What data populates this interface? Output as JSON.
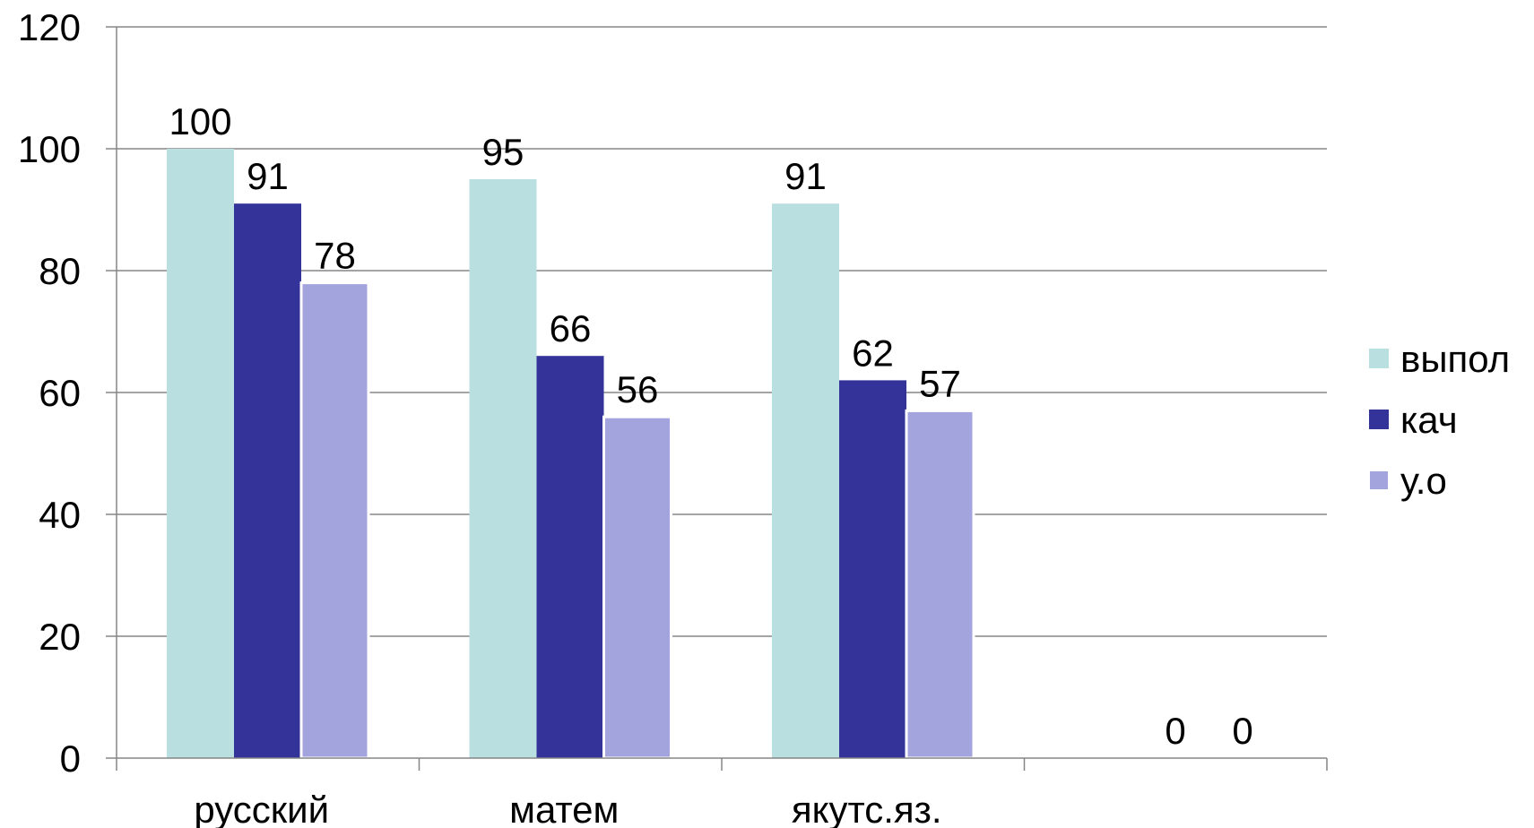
{
  "chart_data": {
    "type": "bar",
    "categories": [
      "русский",
      "матем",
      "якутс.яз.",
      ""
    ],
    "series": [
      {
        "name": "выпол",
        "color": "#b9dfe0",
        "values": [
          100,
          95,
          91,
          null
        ],
        "labels": [
          "100",
          "95",
          "91",
          ""
        ]
      },
      {
        "name": "кач",
        "color": "#333399",
        "values": [
          91,
          66,
          62,
          0
        ],
        "labels": [
          "91",
          "66",
          "62",
          "0"
        ]
      },
      {
        "name": "у.о",
        "color": "#a3a3dd",
        "values": [
          78,
          56,
          57,
          0
        ],
        "labels": [
          "78",
          "56",
          "57",
          "0"
        ]
      }
    ],
    "ylim": [
      0,
      120
    ],
    "yticks": [
      0,
      20,
      40,
      60,
      80,
      100,
      120
    ],
    "grid": true,
    "legend": "right",
    "title": "",
    "xlabel": "",
    "ylabel": ""
  }
}
